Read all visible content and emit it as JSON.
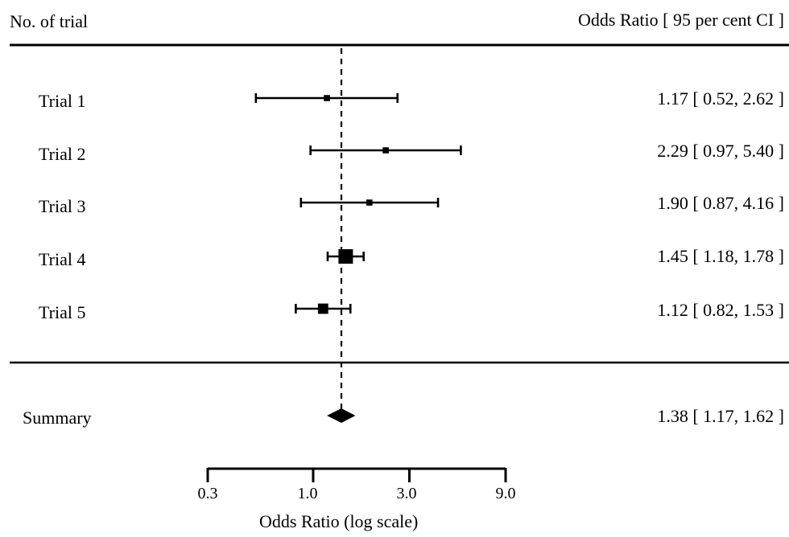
{
  "chart_data": {
    "type": "forest",
    "header_left": "No. of trial",
    "header_right": "Odds Ratio  [ 95 per cent CI ]",
    "xlabel": "Odds Ratio (log scale)",
    "x_scale": "log",
    "xlim": [
      0.3,
      9.0
    ],
    "x_ticks": [
      0.3,
      1.0,
      3.0,
      9.0
    ],
    "x_tick_labels": [
      "0.3",
      "1.0",
      "3.0",
      "9.0"
    ],
    "reference_line": 1.38,
    "trials": [
      {
        "label": "Trial 1",
        "or": 1.17,
        "lo": 0.52,
        "hi": 2.62,
        "text": "1.17  [ 0.52,  2.62 ]",
        "weight": 0.2
      },
      {
        "label": "Trial 2",
        "or": 2.29,
        "lo": 0.97,
        "hi": 5.4,
        "text": "2.29  [ 0.97,  5.40 ]",
        "weight": 0.2
      },
      {
        "label": "Trial 3",
        "or": 1.9,
        "lo": 0.87,
        "hi": 4.16,
        "text": "1.90  [ 0.87,  4.16 ]",
        "weight": 0.2
      },
      {
        "label": "Trial 4",
        "or": 1.45,
        "lo": 1.18,
        "hi": 1.78,
        "text": "1.45  [ 1.18,  1.78 ]",
        "weight": 1.0
      },
      {
        "label": "Trial 5",
        "or": 1.12,
        "lo": 0.82,
        "hi": 1.53,
        "text": "1.12  [ 0.82,  1.53 ]",
        "weight": 0.6
      }
    ],
    "summary": {
      "label": "Summary",
      "or": 1.38,
      "lo": 1.17,
      "hi": 1.62,
      "text": "1.38  [ 1.17,  1.62 ]"
    }
  }
}
